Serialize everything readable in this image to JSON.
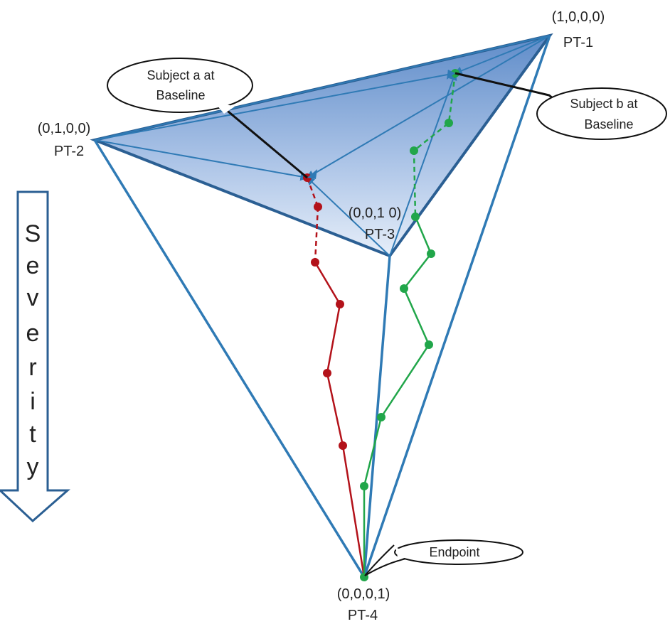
{
  "vertices": {
    "pt1": {
      "coords": "(1,0,0,0)",
      "name": "PT-1"
    },
    "pt2": {
      "coords": "(0,1,0,0)",
      "name": "PT-2"
    },
    "pt3": {
      "coords": "(0,0,1 0)",
      "name": "PT-3"
    },
    "pt4": {
      "coords": "(0,0,0,1)",
      "name": "PT-4"
    }
  },
  "callouts": {
    "subject_a": {
      "line1": "Subject a at",
      "line2": "Baseline"
    },
    "subject_b": {
      "line1": "Subject b at",
      "line2": "Baseline"
    },
    "endpoint": {
      "text": "Endpoint"
    }
  },
  "severity": {
    "letters": [
      "S",
      "e",
      "v",
      "e",
      "r",
      "i",
      "t",
      "y"
    ]
  },
  "colors": {
    "edge": "#2f7ab5",
    "face": "#7ea5d6",
    "subject_a": "#b3121a",
    "subject_b": "#21a64a"
  }
}
